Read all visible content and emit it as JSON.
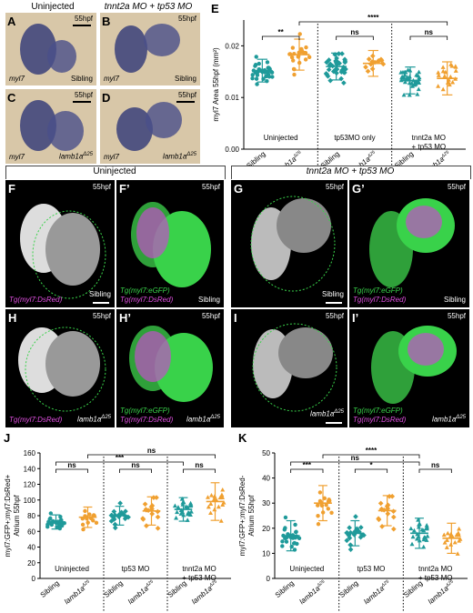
{
  "top_header": {
    "uninjected": "Uninjected",
    "mo_label": "tnnt2a MO + tp53 MO"
  },
  "panels": {
    "A": {
      "letter": "A",
      "stage": "55hpf",
      "gene": "myl7",
      "genotype": "Sibling"
    },
    "B": {
      "letter": "B",
      "stage": "55hpf",
      "gene": "myl7",
      "genotype": "Sibling"
    },
    "C": {
      "letter": "C",
      "stage": "55hpf",
      "gene": "myl7",
      "genotype": "lamb1a",
      "genotype_sup": "Δ25"
    },
    "D": {
      "letter": "D",
      "stage": "55hpf",
      "gene": "myl7",
      "genotype": "lamb1a",
      "genotype_sup": "Δ25"
    },
    "E": {
      "letter": "E"
    },
    "F": {
      "letter": "F",
      "stage": "55hpf",
      "reporter": "Tg(myl7:DsRed)",
      "genotype": "Sibling"
    },
    "F2": {
      "letter": "F’",
      "stage": "55hpf",
      "reporter1": "Tg(myl7:eGFP)",
      "reporter2": "Tg(myl7:DsRed)",
      "genotype": "Sibling"
    },
    "G": {
      "letter": "G",
      "stage": "55hpf",
      "genotype": "Sibling"
    },
    "G2": {
      "letter": "G’",
      "stage": "55hpf",
      "reporter1": "Tg(myl7:eGFP)",
      "reporter2": "Tg(myl7:DsRed)",
      "genotype": "Sibling"
    },
    "H": {
      "letter": "H",
      "stage": "55hpf",
      "reporter": "Tg(myl7:DsRed)",
      "genotype": "lamb1a",
      "genotype_sup": "Δ25"
    },
    "H2": {
      "letter": "H’",
      "stage": "55hpf",
      "reporter1": "Tg(myl7:eGFP)",
      "reporter2": "Tg(myl7:DsRed)",
      "genotype": "lamb1a",
      "genotype_sup": "Δ25"
    },
    "I": {
      "letter": "I",
      "stage": "55hpf",
      "genotype": "lamb1a",
      "genotype_sup": "Δ25"
    },
    "I2": {
      "letter": "I’",
      "stage": "55hpf",
      "reporter1": "Tg(myl7:eGFP)",
      "reporter2": "Tg(myl7:DsRed)",
      "genotype": "lamb1a",
      "genotype_sup": "Δ25"
    },
    "J": {
      "letter": "J"
    },
    "K": {
      "letter": "K"
    }
  },
  "mid_header": {
    "uninjected": "Uninjected",
    "mo_label": "tnnt2a MO + tp53 MO"
  },
  "chart_data": [
    {
      "panel": "E",
      "type": "scatter",
      "ylabel": "myl7 Area 55hpf (mm²)",
      "ylim": [
        0,
        0.025
      ],
      "yticks": [
        "0.00",
        "0.01",
        "0.02"
      ],
      "categories": [
        "Sibling",
        "lamb1aΔ25",
        "Sibling",
        "lamb1aΔ25",
        "Sibling",
        "lamb1aΔ25"
      ],
      "groups": [
        "Uninjected",
        "tp53MO only",
        "tnnt2a MO + tp53 MO"
      ],
      "means": [
        0.0152,
        0.0183,
        0.016,
        0.0166,
        0.0133,
        0.0137
      ],
      "sd": [
        0.0022,
        0.003,
        0.0026,
        0.0025,
        0.0026,
        0.0032
      ],
      "n": [
        38,
        24,
        38,
        14,
        36,
        20
      ],
      "significance": [
        {
          "from": 0,
          "to": 1,
          "label": "**"
        },
        {
          "from": 2,
          "to": 3,
          "label": "ns"
        },
        {
          "from": 4,
          "to": 5,
          "label": "ns"
        },
        {
          "from": 1,
          "to": 5,
          "label": "****"
        }
      ]
    },
    {
      "panel": "J",
      "type": "scatter",
      "ylabel_line1": "myl7:GFP+;myl7:DsRed+",
      "ylabel_line2": "Atrium 55hpf",
      "ylim": [
        0,
        160
      ],
      "yticks": [
        "0",
        "20",
        "40",
        "60",
        "80",
        "100",
        "120",
        "140",
        "160"
      ],
      "categories": [
        "Sibling",
        "lamb1aΔ25",
        "Sibling",
        "lamb1aΔ25",
        "Sibling",
        "lamb1aΔ25"
      ],
      "groups": [
        "Uninjected",
        "tp53 MO",
        "tnnt2a MO + tp53 MO"
      ],
      "means": [
        72,
        78,
        80,
        86,
        88,
        98
      ],
      "sd": [
        9,
        13,
        12,
        18,
        15,
        24
      ],
      "n": [
        26,
        16,
        22,
        16,
        24,
        18
      ],
      "significance": [
        {
          "from": 0,
          "to": 1,
          "label": "ns"
        },
        {
          "from": 2,
          "to": 3,
          "label": "ns"
        },
        {
          "from": 4,
          "to": 5,
          "label": "ns"
        },
        {
          "from": 1,
          "to": 5,
          "label": "ns"
        },
        {
          "from": 0,
          "to": 4,
          "label": "***"
        }
      ]
    },
    {
      "panel": "K",
      "type": "scatter",
      "ylabel_line1": "myl7:GFP+;myl7:DsRed-",
      "ylabel_line2": "Atrium 55hpf",
      "ylim": [
        0,
        50
      ],
      "yticks": [
        "0",
        "10",
        "20",
        "30",
        "40",
        "50"
      ],
      "categories": [
        "Sibling",
        "lamb1aΔ25",
        "Sibling",
        "lamb1aΔ25",
        "Sibling",
        "lamb1aΔ25"
      ],
      "groups": [
        "Uninjected",
        "tp53 MO",
        "tnnt2a MO+ tp53 MO"
      ],
      "means": [
        17,
        30,
        18,
        27,
        18,
        16
      ],
      "sd": [
        6,
        7,
        5,
        6,
        6,
        6
      ],
      "n": [
        26,
        16,
        22,
        16,
        24,
        18
      ],
      "significance": [
        {
          "from": 0,
          "to": 1,
          "label": "***"
        },
        {
          "from": 2,
          "to": 3,
          "label": "*"
        },
        {
          "from": 4,
          "to": 5,
          "label": "ns"
        },
        {
          "from": 1,
          "to": 4,
          "label": "****"
        },
        {
          "from": 0,
          "to": 4,
          "label": "ns"
        }
      ]
    }
  ],
  "colors": {
    "sibling": "#1f9a9a",
    "mutant": "#f0a030",
    "ish_bg": "#d8c7a8",
    "ish_stain": "#3a3f7a",
    "gfp": "#39d24a",
    "dsred": "#e04fe0"
  }
}
